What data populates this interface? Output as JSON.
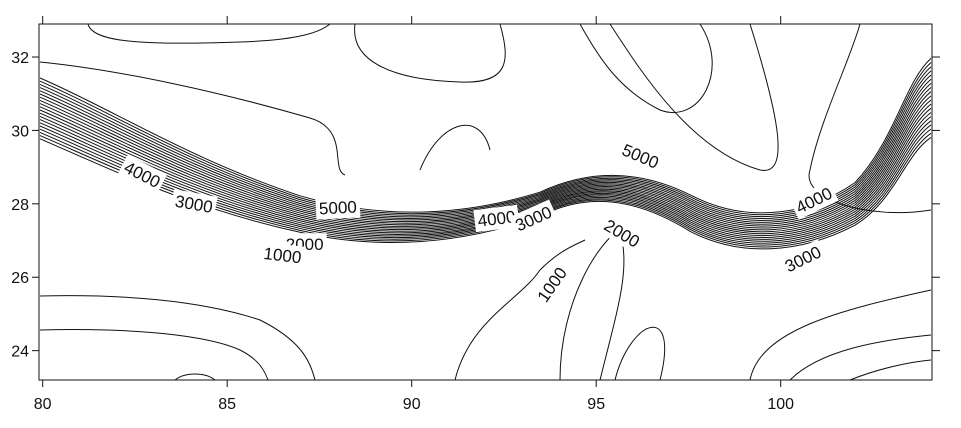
{
  "chart_data": {
    "type": "contour",
    "title": "",
    "xlabel": "",
    "ylabel": "",
    "xlim": [
      79.9,
      104.1
    ],
    "ylim": [
      23.2,
      32.9
    ],
    "grid": false,
    "x_ticks": [
      80,
      85,
      90,
      95,
      100
    ],
    "y_ticks": [
      24,
      26,
      28,
      30,
      32
    ],
    "contour_labels": [
      {
        "text": "4000",
        "x": 82.7,
        "y": 28.8,
        "angle": 27
      },
      {
        "text": "3000",
        "x": 84.1,
        "y": 28.0,
        "angle": 10
      },
      {
        "text": "5000",
        "x": 88.0,
        "y": 27.9,
        "angle": -3
      },
      {
        "text": "2000",
        "x": 87.1,
        "y": 26.9,
        "angle": 0
      },
      {
        "text": "1000",
        "x": 86.5,
        "y": 26.6,
        "angle": 7
      },
      {
        "text": "4000",
        "x": 92.3,
        "y": 27.6,
        "angle": -7
      },
      {
        "text": "3000",
        "x": 93.3,
        "y": 27.6,
        "angle": -24
      },
      {
        "text": "5000",
        "x": 96.2,
        "y": 29.3,
        "angle": 23
      },
      {
        "text": "2000",
        "x": 95.7,
        "y": 27.2,
        "angle": 31
      },
      {
        "text": "1000",
        "x": 93.8,
        "y": 25.8,
        "angle": -55
      },
      {
        "text": "4000",
        "x": 100.9,
        "y": 28.1,
        "angle": -26
      },
      {
        "text": "3000",
        "x": 100.6,
        "y": 26.5,
        "angle": -26
      }
    ],
    "contour_levels": [
      1000,
      2000,
      3000,
      4000,
      5000
    ]
  }
}
